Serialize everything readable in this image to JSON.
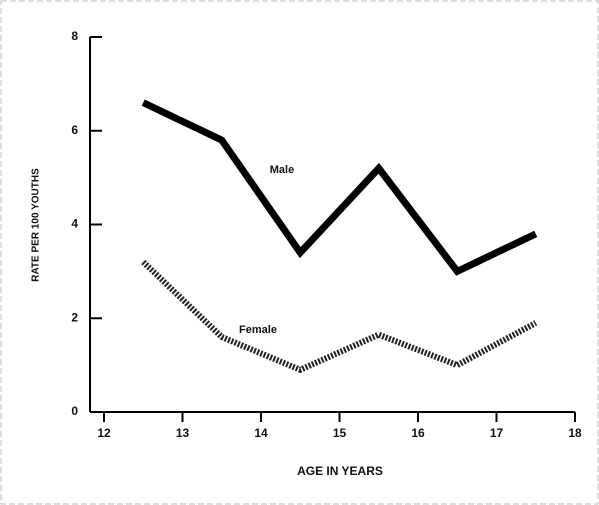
{
  "chart_data": {
    "type": "line",
    "x": [
      12.5,
      13.5,
      14.5,
      15.5,
      16.5,
      17.5
    ],
    "series": [
      {
        "name": "Male",
        "color": "#000000",
        "values": [
          6.6,
          5.8,
          3.4,
          5.2,
          3.0,
          3.8
        ]
      },
      {
        "name": "Female",
        "color": "#222222",
        "values": [
          3.2,
          1.6,
          0.9,
          1.65,
          1.0,
          1.9
        ]
      }
    ],
    "xlabel": "AGE IN YEARS",
    "ylabel": "RATE PER 100 YOUTHS",
    "xlim": [
      12,
      18
    ],
    "xticks": [
      12,
      13,
      14,
      15,
      16,
      17,
      18
    ],
    "ylim": [
      0,
      8
    ],
    "yticks": [
      0,
      2,
      4,
      6,
      8
    ]
  }
}
